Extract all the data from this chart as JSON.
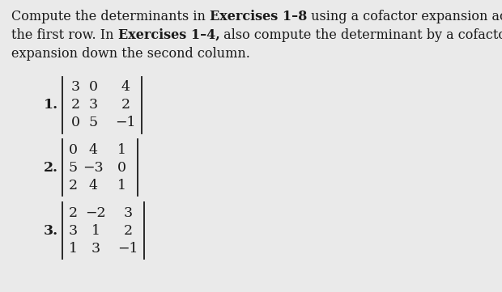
{
  "bg_color": "#eaeaea",
  "text_color": "#1a1a1a",
  "figsize": [
    6.2,
    3.61
  ],
  "dpi": 100,
  "exercises": [
    {
      "number": "1.",
      "matrix": [
        [
          "3",
          "0",
          "4"
        ],
        [
          "2",
          "3",
          "2"
        ],
        [
          "0",
          "5",
          "−1"
        ]
      ]
    },
    {
      "number": "2.",
      "matrix": [
        [
          "0",
          "4",
          "1"
        ],
        [
          "5",
          "−3",
          "0"
        ],
        [
          "2",
          "4",
          "1"
        ]
      ]
    },
    {
      "number": "3.",
      "matrix": [
        [
          "2",
          "−2",
          "3"
        ],
        [
          "3",
          "1",
          "2"
        ],
        [
          "1",
          "3",
          "−1"
        ]
      ]
    }
  ]
}
